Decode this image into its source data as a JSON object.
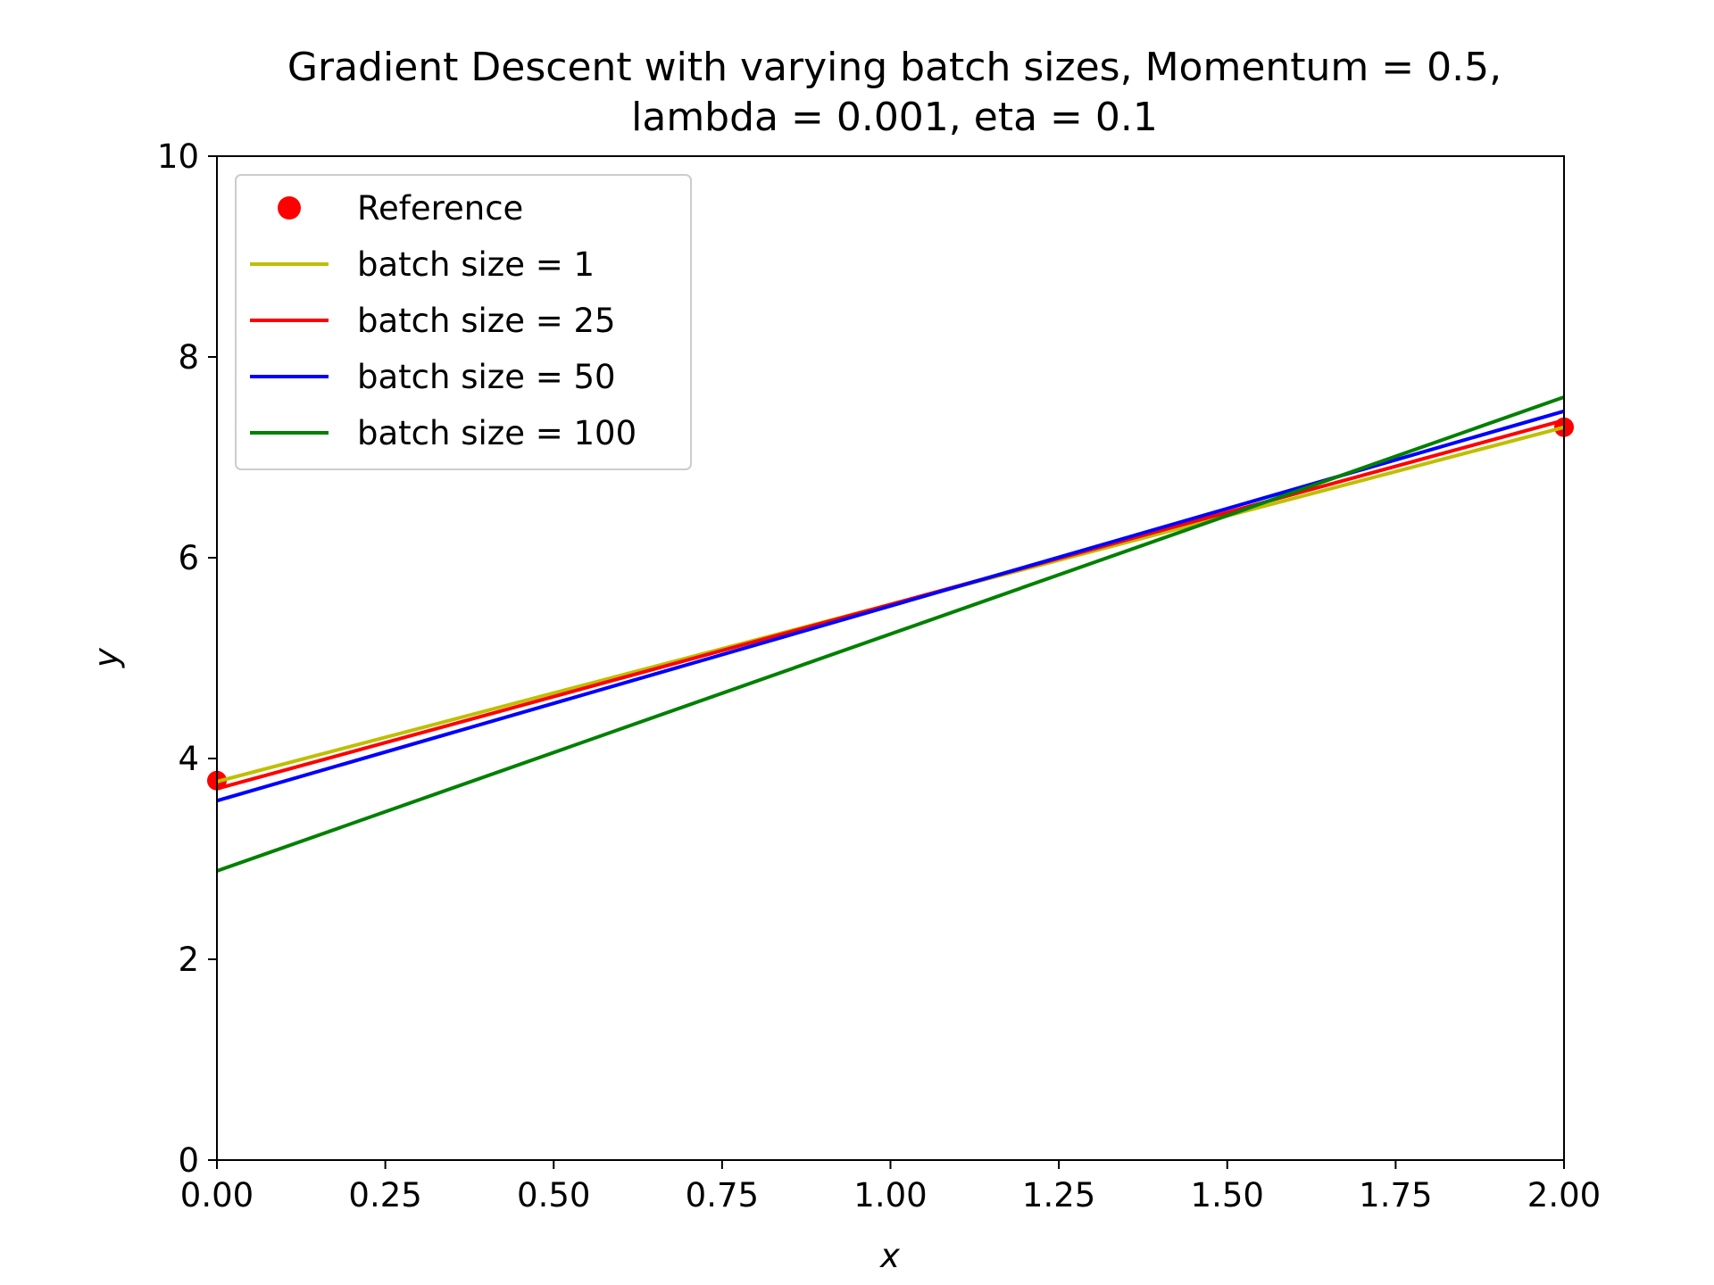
{
  "chart_data": {
    "type": "line",
    "title_lines": [
      "Gradient Descent with varying batch sizes, Momentum = 0.5,",
      "lambda = 0.001, eta = 0.1"
    ],
    "xlabel": "x",
    "ylabel": "y",
    "xlim": [
      0,
      2
    ],
    "ylim": [
      0,
      10
    ],
    "x_ticks": [
      0,
      0.25,
      0.5,
      0.75,
      1.0,
      1.25,
      1.5,
      1.75,
      2.0
    ],
    "x_tick_labels": [
      "0.00",
      "0.25",
      "0.50",
      "0.75",
      "1.00",
      "1.25",
      "1.50",
      "1.75",
      "2.00"
    ],
    "y_ticks": [
      0,
      2,
      4,
      6,
      8,
      10
    ],
    "y_tick_labels": [
      "0",
      "2",
      "4",
      "6",
      "8",
      "10"
    ],
    "grid": false,
    "legend_position": "top-left",
    "reference": {
      "name": "Reference",
      "color": "#ff0000",
      "marker": "circle",
      "x": [
        0,
        2
      ],
      "y": [
        3.78,
        7.3
      ]
    },
    "series": [
      {
        "name": "batch size = 1",
        "color": "#bfbf00",
        "x": [
          0,
          2
        ],
        "y": [
          3.77,
          7.3
        ]
      },
      {
        "name": "batch size = 25",
        "color": "#ff0000",
        "x": [
          0,
          2
        ],
        "y": [
          3.7,
          7.37
        ]
      },
      {
        "name": "batch size = 50",
        "color": "#0000ff",
        "x": [
          0,
          2
        ],
        "y": [
          3.58,
          7.46
        ]
      },
      {
        "name": "batch size = 100",
        "color": "#008000",
        "x": [
          0,
          2
        ],
        "y": [
          2.88,
          7.6
        ]
      }
    ]
  }
}
